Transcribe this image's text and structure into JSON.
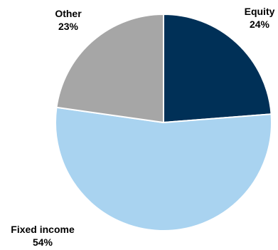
{
  "chart_data": {
    "type": "pie",
    "title": "",
    "slices": [
      {
        "label": "Equity",
        "value": 24,
        "display": "24%",
        "color": "#003057"
      },
      {
        "label": "Fixed income",
        "value": 54,
        "display": "54%",
        "color": "#A9D3F0"
      },
      {
        "label": "Other",
        "value": 23,
        "display": "23%",
        "color": "#A6A6A6"
      }
    ],
    "start_angle_deg": 0,
    "direction": "clockwise",
    "slice_border_color": "#FFFFFF"
  }
}
